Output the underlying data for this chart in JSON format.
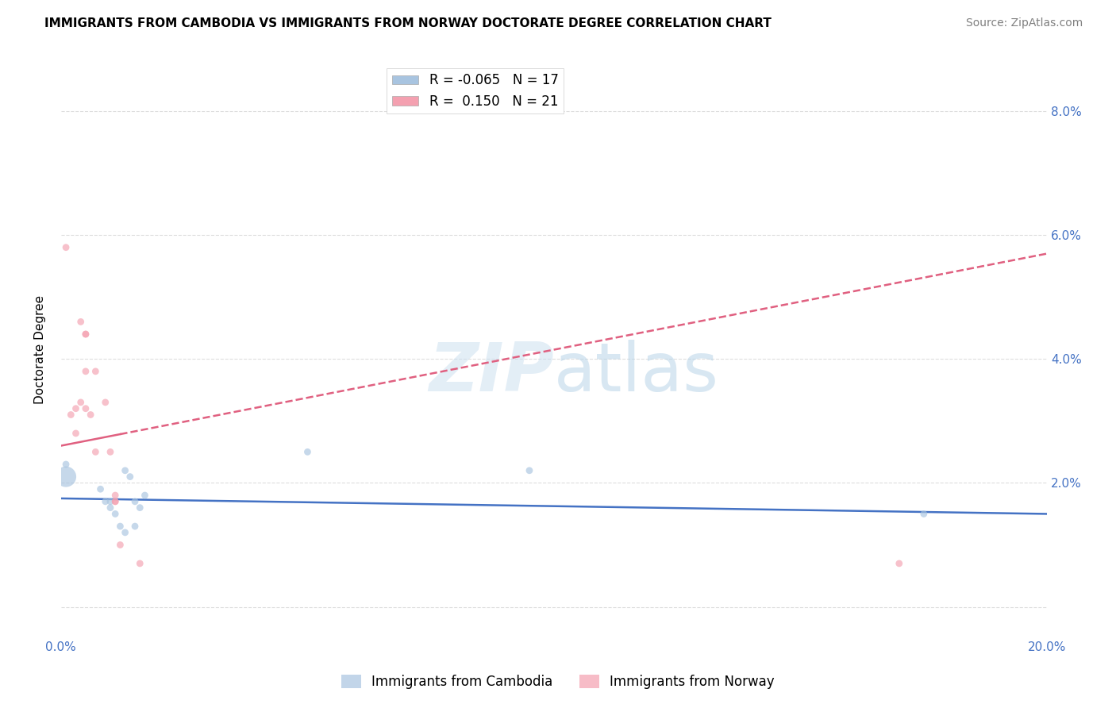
{
  "title": "IMMIGRANTS FROM CAMBODIA VS IMMIGRANTS FROM NORWAY DOCTORATE DEGREE CORRELATION CHART",
  "source": "Source: ZipAtlas.com",
  "ylabel": "Doctorate Degree",
  "xlim": [
    0.0,
    0.2
  ],
  "ylim": [
    -0.005,
    0.088
  ],
  "xticks": [
    0.0,
    0.05,
    0.1,
    0.15,
    0.2
  ],
  "xtick_labels": [
    "0.0%",
    "",
    "",
    "",
    "20.0%"
  ],
  "yticks": [
    0.0,
    0.02,
    0.04,
    0.06,
    0.08
  ],
  "ytick_labels": [
    "",
    "2.0%",
    "4.0%",
    "6.0%",
    "8.0%"
  ],
  "legend_r_cambodia": "-0.065",
  "legend_n_cambodia": "17",
  "legend_r_norway": "0.150",
  "legend_n_norway": "21",
  "cambodia_color": "#a8c4e0",
  "norway_color": "#f4a0b0",
  "trendline_cambodia_color": "#4472c4",
  "trendline_norway_color": "#e06080",
  "watermark_zip": "ZIP",
  "watermark_atlas": "atlas",
  "background_color": "#ffffff",
  "scatter_cambodia": [
    [
      0.001,
      0.023
    ],
    [
      0.008,
      0.019
    ],
    [
      0.009,
      0.017
    ],
    [
      0.01,
      0.017
    ],
    [
      0.01,
      0.016
    ],
    [
      0.011,
      0.015
    ],
    [
      0.012,
      0.013
    ],
    [
      0.013,
      0.022
    ],
    [
      0.013,
      0.012
    ],
    [
      0.014,
      0.021
    ],
    [
      0.015,
      0.017
    ],
    [
      0.015,
      0.013
    ],
    [
      0.016,
      0.016
    ],
    [
      0.017,
      0.018
    ],
    [
      0.05,
      0.025
    ],
    [
      0.095,
      0.022
    ],
    [
      0.175,
      0.015
    ]
  ],
  "scatter_norway": [
    [
      0.001,
      0.058
    ],
    [
      0.002,
      0.031
    ],
    [
      0.003,
      0.032
    ],
    [
      0.003,
      0.028
    ],
    [
      0.004,
      0.033
    ],
    [
      0.004,
      0.046
    ],
    [
      0.005,
      0.044
    ],
    [
      0.005,
      0.044
    ],
    [
      0.005,
      0.038
    ],
    [
      0.005,
      0.032
    ],
    [
      0.006,
      0.031
    ],
    [
      0.007,
      0.038
    ],
    [
      0.007,
      0.025
    ],
    [
      0.009,
      0.033
    ],
    [
      0.01,
      0.025
    ],
    [
      0.011,
      0.018
    ],
    [
      0.011,
      0.017
    ],
    [
      0.011,
      0.017
    ],
    [
      0.012,
      0.01
    ],
    [
      0.016,
      0.007
    ],
    [
      0.17,
      0.007
    ]
  ],
  "scatter_cambodia_size": 40,
  "scatter_norway_size": 40,
  "big_cambodia_point": [
    0.001,
    0.021,
    350
  ],
  "grid_color": "#dddddd",
  "title_fontsize": 11,
  "axis_label_fontsize": 11,
  "tick_fontsize": 11,
  "legend_fontsize": 12,
  "source_fontsize": 10,
  "trendline_norway_x0": 0.0,
  "trendline_norway_y0": 0.026,
  "trendline_norway_x1": 0.2,
  "trendline_norway_y1": 0.057,
  "trendline_norway_solid_end": 0.012,
  "trendline_cambodia_x0": 0.0,
  "trendline_cambodia_y0": 0.0175,
  "trendline_cambodia_x1": 0.2,
  "trendline_cambodia_y1": 0.015
}
